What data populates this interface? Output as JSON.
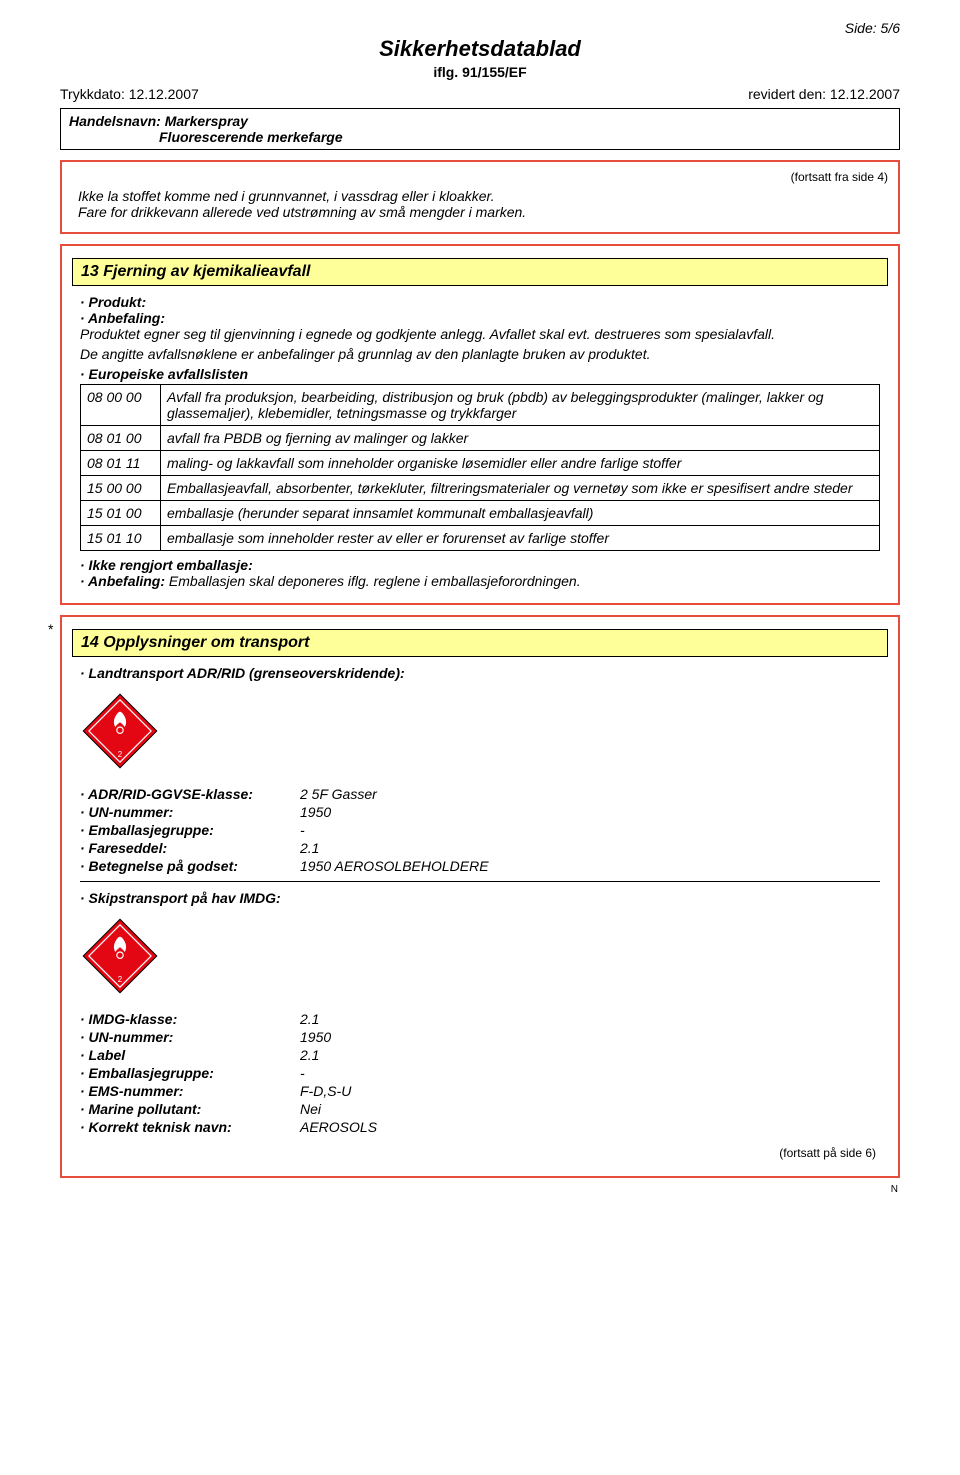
{
  "page": {
    "side": "Side: 5/6",
    "title": "Sikkerhetsdatablad",
    "subtitle": "iflg. 91/155/EF",
    "print_date": "Trykkdato: 12.12.2007",
    "rev_date": "revidert den: 12.12.2007",
    "trade_name_label": "Handelsnavn: Markerspray",
    "trade_name_sub": "Fluorescerende merkefarge",
    "cont_from": "(fortsatt fra side 4)",
    "cont_to": "(fortsatt på side 6)",
    "n_mark": "N"
  },
  "colors": {
    "outer_border": "#e74c3c",
    "section_bg": "#ffff99",
    "diamond_fill": "#e30613",
    "diamond_stroke": "#000000",
    "flame": "#ffffff"
  },
  "box1": {
    "line1": "Ikke la stoffet komme ned i grunnvannet, i vassdrag eller i kloakker.",
    "line2": "Fare for drikkevann allerede ved utstrømning av små mengder i marken."
  },
  "s13": {
    "heading": "13 Fjerning av kjemikalieavfall",
    "produkt_lbl": "· Produkt:",
    "anbefaling_lbl": "· Anbefaling:",
    "anbefaling_text": "Produktet egner seg til gjenvinning i egnede og godkjente anlegg. Avfallet skal evt. destrueres som spesialavfall.",
    "anbefaling_text2": "De angitte avfallsnøklene er anbefalinger på grunnlag av den planlagte bruken av produktet.",
    "listen_lbl": "· Europeiske avfallslisten",
    "rows": [
      {
        "code": "08 00 00",
        "desc": "Avfall fra produksjon, bearbeiding, distribusjon og bruk (pbdb) av beleggingsprodukter (malinger, lakker og glassemaljer), klebemidler, tetningsmasse og trykkfarger"
      },
      {
        "code": "08 01 00",
        "desc": "avfall fra PBDB og fjerning av malinger og lakker"
      },
      {
        "code": "08 01 11",
        "desc": "maling- og lakkavfall som inneholder organiske løsemidler eller andre farlige stoffer"
      },
      {
        "code": "15 00 00",
        "desc": "Emballasjeavfall, absorbenter, tørkekluter, filtreringsmaterialer og vernetøy som ikke er spesifisert andre steder"
      },
      {
        "code": "15 01 00",
        "desc": "emballasje (herunder separat innsamlet kommunalt emballasjeavfall)"
      },
      {
        "code": "15 01 10",
        "desc": "emballasje som inneholder rester av eller er forurenset av farlige stoffer"
      }
    ],
    "ikke_lbl": "· Ikke rengjort emballasje:",
    "anbef2_lbl": "· Anbefaling:",
    "anbef2_text": " Emballasjen skal deponeres iflg. reglene i emballasjeforordningen."
  },
  "s14": {
    "heading": "14 Opplysninger om transport",
    "land_lbl": "· Landtransport ADR/RID (grenseoverskridende):",
    "land_rows": [
      {
        "k": "· ADR/RID-GGVSE-klasse:",
        "v": "2   5F Gasser"
      },
      {
        "k": "· UN-nummer:",
        "v": "1950"
      },
      {
        "k": "· Emballasjegruppe:",
        "v": "-"
      },
      {
        "k": "· Fareseddel:",
        "v": "2.1"
      },
      {
        "k": "· Betegnelse på godset:",
        "v": "1950 AEROSOLBEHOLDERE"
      }
    ],
    "ship_lbl": "· Skipstransport på hav IMDG:",
    "ship_rows": [
      {
        "k": "· IMDG-klasse:",
        "v": "2.1"
      },
      {
        "k": "· UN-nummer:",
        "v": "1950"
      },
      {
        "k": "· Label",
        "v": "2.1"
      },
      {
        "k": "· Emballasjegruppe:",
        "v": "-"
      },
      {
        "k": "· EMS-nummer:",
        "v": "F-D,S-U"
      },
      {
        "k": "· Marine pollutant:",
        "v": "Nei"
      },
      {
        "k": "· Korrekt teknisk navn:",
        "v": "AEROSOLS"
      }
    ],
    "asterisk": "*"
  }
}
